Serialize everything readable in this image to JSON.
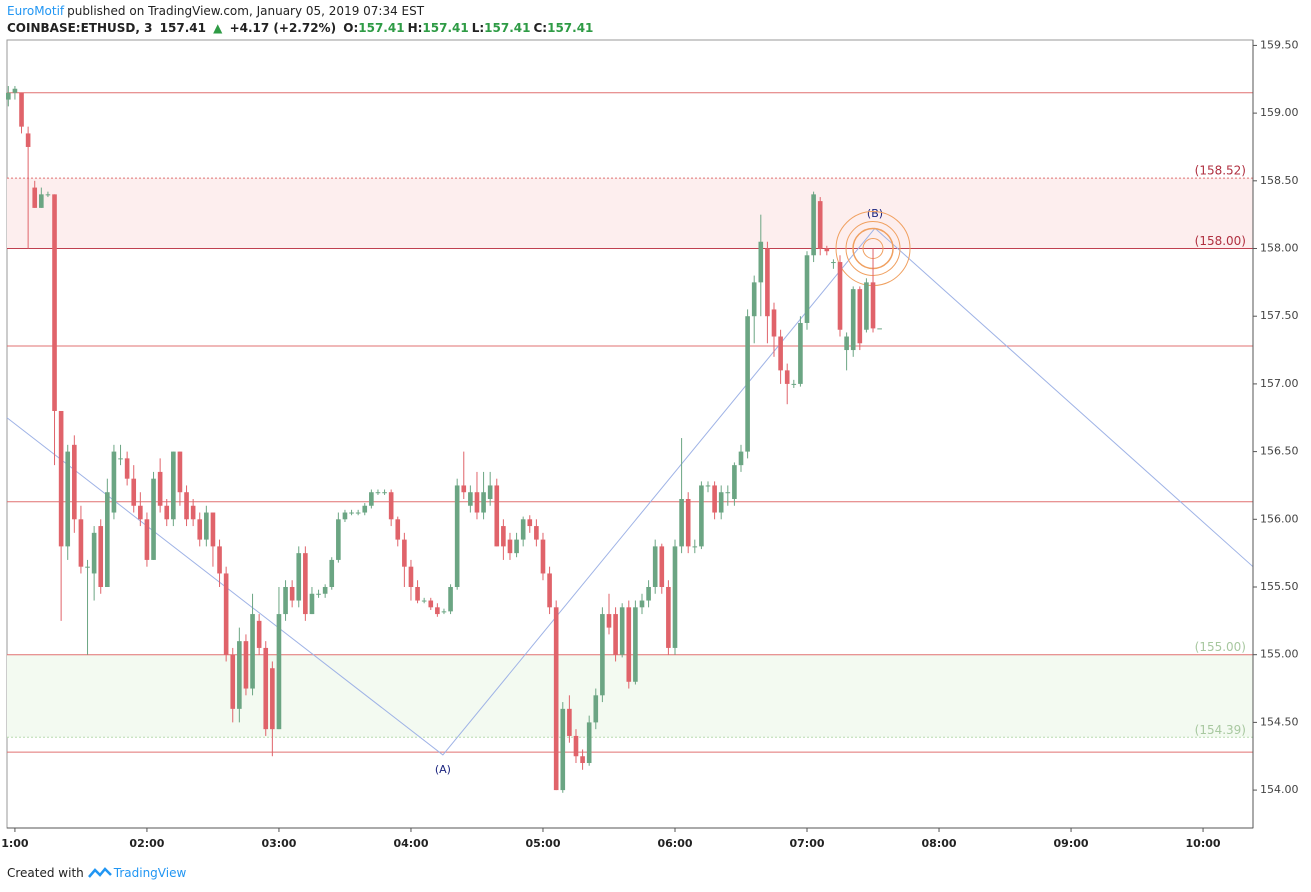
{
  "header": {
    "author": "EuroMotif",
    "published": "published on TradingView.com, January 05, 2019 07:34 EST",
    "symbol": "COINBASE:ETHUSD, 3",
    "last": "157.41",
    "arrow": "▲",
    "change": "+4.17 (+2.72%)",
    "ohlc": [
      {
        "key": "O:",
        "value": "157.41"
      },
      {
        "key": "H:",
        "value": "157.41"
      },
      {
        "key": "L:",
        "value": "157.41"
      },
      {
        "key": "C:",
        "value": "157.41"
      }
    ]
  },
  "footer": {
    "text": "Created with",
    "brand": "TradingView"
  },
  "chart_data": {
    "type": "candlestick",
    "up_color": "#6ba583",
    "down_color": "#e0636a",
    "xlim": [
      56.4,
      622.7
    ],
    "ylim": [
      153.72,
      159.54
    ],
    "xticks": [
      {
        "value": 60,
        "label": "1:00"
      },
      {
        "value": 120,
        "label": "02:00"
      },
      {
        "value": 180,
        "label": "03:00"
      },
      {
        "value": 240,
        "label": "04:00"
      },
      {
        "value": 300,
        "label": "05:00"
      },
      {
        "value": 360,
        "label": "06:00"
      },
      {
        "value": 420,
        "label": "07:00"
      },
      {
        "value": 480,
        "label": "08:00"
      },
      {
        "value": 540,
        "label": "09:00"
      },
      {
        "value": 600,
        "label": "10:00"
      }
    ],
    "yticks": [
      {
        "value": 154,
        "label": "154.00"
      },
      {
        "value": 154.5,
        "label": "154.50"
      },
      {
        "value": 155,
        "label": "155.00"
      },
      {
        "value": 155.5,
        "label": "155.50"
      },
      {
        "value": 156,
        "label": "156.00"
      },
      {
        "value": 156.5,
        "label": "156.50"
      },
      {
        "value": 157,
        "label": "157.00"
      },
      {
        "value": 157.5,
        "label": "157.50"
      },
      {
        "value": 158,
        "label": "158.00"
      },
      {
        "value": 158.5,
        "label": "158.50"
      },
      {
        "value": 159,
        "label": "159.00"
      },
      {
        "value": 159.5,
        "label": "159.50"
      }
    ],
    "x": [
      57,
      60,
      63,
      66,
      69,
      72,
      75,
      78,
      81,
      84,
      87,
      90,
      93,
      96,
      99,
      102,
      105,
      108,
      111,
      114,
      117,
      120,
      123,
      126,
      129,
      132,
      135,
      138,
      141,
      144,
      147,
      150,
      153,
      156,
      159,
      162,
      165,
      168,
      171,
      174,
      177,
      180,
      183,
      186,
      189,
      192,
      195,
      198,
      201,
      204,
      207,
      210,
      213,
      216,
      219,
      222,
      225,
      228,
      231,
      234,
      237,
      240,
      243,
      246,
      249,
      252,
      255,
      258,
      261,
      264,
      267,
      270,
      273,
      276,
      279,
      282,
      285,
      288,
      291,
      294,
      297,
      300,
      303,
      306,
      309,
      312,
      315,
      318,
      321,
      324,
      327,
      330,
      333,
      336,
      339,
      342,
      345,
      348,
      351,
      354,
      357,
      360,
      363,
      366,
      369,
      372,
      375,
      378,
      381,
      384,
      387,
      390,
      393,
      396,
      399,
      402,
      405,
      408,
      411,
      414,
      417,
      420,
      423,
      426,
      429,
      432,
      435,
      438,
      441,
      444,
      447,
      450,
      453
    ],
    "candles": [
      [
        159.1,
        159.2,
        159.05,
        159.15
      ],
      [
        159.15,
        159.2,
        159.1,
        159.18
      ],
      [
        159.15,
        159.15,
        158.85,
        158.9
      ],
      [
        158.85,
        158.9,
        158.0,
        158.75
      ],
      [
        158.45,
        158.5,
        158.3,
        158.3
      ],
      [
        158.3,
        158.45,
        158.3,
        158.4
      ],
      [
        158.4,
        158.42,
        158.38,
        158.4
      ],
      [
        158.4,
        158.4,
        156.4,
        156.8
      ],
      [
        156.8,
        156.8,
        155.25,
        155.8
      ],
      [
        155.8,
        156.55,
        155.7,
        156.5
      ],
      [
        156.55,
        156.62,
        155.9,
        156.0
      ],
      [
        156.0,
        156.1,
        155.6,
        155.65
      ],
      [
        155.65,
        155.7,
        155.0,
        155.65
      ],
      [
        155.6,
        155.95,
        155.4,
        155.9
      ],
      [
        155.95,
        156.0,
        155.45,
        155.5
      ],
      [
        155.5,
        156.3,
        155.5,
        156.2
      ],
      [
        156.05,
        156.55,
        156.0,
        156.5
      ],
      [
        156.45,
        156.55,
        156.4,
        156.45
      ],
      [
        156.45,
        156.5,
        156.25,
        156.3
      ],
      [
        156.3,
        156.4,
        156.05,
        156.1
      ],
      [
        156.1,
        156.2,
        155.95,
        156.0
      ],
      [
        156.0,
        156.05,
        155.65,
        155.7
      ],
      [
        155.7,
        156.35,
        155.7,
        156.3
      ],
      [
        156.35,
        156.45,
        156.05,
        156.1
      ],
      [
        156.1,
        156.15,
        155.95,
        156.0
      ],
      [
        156.0,
        156.5,
        155.95,
        156.5
      ],
      [
        156.5,
        156.5,
        156.1,
        156.2
      ],
      [
        156.2,
        156.25,
        155.95,
        156.0
      ],
      [
        156.1,
        156.15,
        155.95,
        156.0
      ],
      [
        156.0,
        156.05,
        155.8,
        155.85
      ],
      [
        155.85,
        156.1,
        155.8,
        156.05
      ],
      [
        156.05,
        156.05,
        155.65,
        155.8
      ],
      [
        155.8,
        155.85,
        155.5,
        155.6
      ],
      [
        155.6,
        155.65,
        154.95,
        155.0
      ],
      [
        155.0,
        155.05,
        154.5,
        154.6
      ],
      [
        154.6,
        155.2,
        154.5,
        155.1
      ],
      [
        155.1,
        155.15,
        154.7,
        154.75
      ],
      [
        154.75,
        155.45,
        154.7,
        155.3
      ],
      [
        155.25,
        155.3,
        155.0,
        155.05
      ],
      [
        155.05,
        155.1,
        154.4,
        154.45
      ],
      [
        154.9,
        154.95,
        154.25,
        154.45
      ],
      [
        154.45,
        155.5,
        154.45,
        155.3
      ],
      [
        155.3,
        155.55,
        155.25,
        155.5
      ],
      [
        155.5,
        155.55,
        155.35,
        155.4
      ],
      [
        155.4,
        155.8,
        155.35,
        155.75
      ],
      [
        155.75,
        155.8,
        155.25,
        155.3
      ],
      [
        155.3,
        155.5,
        155.3,
        155.45
      ],
      [
        155.45,
        155.48,
        155.42,
        155.45
      ],
      [
        155.45,
        155.52,
        155.42,
        155.5
      ],
      [
        155.5,
        155.72,
        155.48,
        155.7
      ],
      [
        155.7,
        156.05,
        155.68,
        156.0
      ],
      [
        156.0,
        156.07,
        155.98,
        156.05
      ],
      [
        156.05,
        156.07,
        156.03,
        156.05
      ],
      [
        156.05,
        156.07,
        156.03,
        156.05
      ],
      [
        156.05,
        156.12,
        156.03,
        156.1
      ],
      [
        156.1,
        156.22,
        156.08,
        156.2
      ],
      [
        156.2,
        156.22,
        156.18,
        156.2
      ],
      [
        156.2,
        156.22,
        156.18,
        156.2
      ],
      [
        156.2,
        156.22,
        155.95,
        156.0
      ],
      [
        156.0,
        156.02,
        155.8,
        155.85
      ],
      [
        155.85,
        155.9,
        155.5,
        155.65
      ],
      [
        155.65,
        155.7,
        155.4,
        155.5
      ],
      [
        155.5,
        155.55,
        155.38,
        155.4
      ],
      [
        155.4,
        155.42,
        155.38,
        155.4
      ],
      [
        155.4,
        155.42,
        155.33,
        155.35
      ],
      [
        155.35,
        155.38,
        155.28,
        155.3
      ],
      [
        155.32,
        155.34,
        155.3,
        155.32
      ],
      [
        155.32,
        155.52,
        155.3,
        155.5
      ],
      [
        155.5,
        156.3,
        155.48,
        156.25
      ],
      [
        156.25,
        156.5,
        156.15,
        156.2
      ],
      [
        156.1,
        156.25,
        156.05,
        156.2
      ],
      [
        156.2,
        156.35,
        156.0,
        156.05
      ],
      [
        156.05,
        156.35,
        156.0,
        156.2
      ],
      [
        156.15,
        156.35,
        156.1,
        156.25
      ],
      [
        156.25,
        156.3,
        155.8,
        155.8
      ],
      [
        155.95,
        156.0,
        155.7,
        155.8
      ],
      [
        155.85,
        155.9,
        155.7,
        155.75
      ],
      [
        155.75,
        155.9,
        155.72,
        155.85
      ],
      [
        155.85,
        156.02,
        155.8,
        156.0
      ],
      [
        156.0,
        156.03,
        155.9,
        155.95
      ],
      [
        155.95,
        156.0,
        155.8,
        155.85
      ],
      [
        155.85,
        155.9,
        155.55,
        155.6
      ],
      [
        155.6,
        155.65,
        155.3,
        155.35
      ],
      [
        155.35,
        155.4,
        154.0,
        154.0
      ],
      [
        154.0,
        154.65,
        153.98,
        154.6
      ],
      [
        154.6,
        154.7,
        154.35,
        154.4
      ],
      [
        154.4,
        154.45,
        154.2,
        154.25
      ],
      [
        154.25,
        154.3,
        154.15,
        154.2
      ],
      [
        154.2,
        154.55,
        154.18,
        154.5
      ],
      [
        154.5,
        154.75,
        154.45,
        154.7
      ],
      [
        154.7,
        155.35,
        154.65,
        155.3
      ],
      [
        155.3,
        155.45,
        155.15,
        155.2
      ],
      [
        155.3,
        155.35,
        154.95,
        155.0
      ],
      [
        155.0,
        155.38,
        154.98,
        155.35
      ],
      [
        155.35,
        155.4,
        154.75,
        154.8
      ],
      [
        154.8,
        155.4,
        154.78,
        155.35
      ],
      [
        155.35,
        155.45,
        155.3,
        155.4
      ],
      [
        155.4,
        155.55,
        155.35,
        155.5
      ],
      [
        155.5,
        155.85,
        155.45,
        155.8
      ],
      [
        155.8,
        155.82,
        155.45,
        155.5
      ],
      [
        155.5,
        155.55,
        155.0,
        155.05
      ],
      [
        155.05,
        155.85,
        155.0,
        155.8
      ],
      [
        155.8,
        156.6,
        155.75,
        156.15
      ],
      [
        156.15,
        156.2,
        155.75,
        155.8
      ],
      [
        155.8,
        155.85,
        155.75,
        155.8
      ],
      [
        155.8,
        156.28,
        155.78,
        156.25
      ],
      [
        156.25,
        156.28,
        156.2,
        156.25
      ],
      [
        156.25,
        156.28,
        156.0,
        156.05
      ],
      [
        156.05,
        156.25,
        156.0,
        156.2
      ],
      [
        156.2,
        156.25,
        156.1,
        156.2
      ],
      [
        156.15,
        156.42,
        156.1,
        156.4
      ],
      [
        156.4,
        156.55,
        156.35,
        156.5
      ],
      [
        156.5,
        157.55,
        156.45,
        157.5
      ],
      [
        157.5,
        157.8,
        157.3,
        157.75
      ],
      [
        157.75,
        158.25,
        157.5,
        158.05
      ],
      [
        158.0,
        158.05,
        157.3,
        157.5
      ],
      [
        157.55,
        157.6,
        157.2,
        157.35
      ],
      [
        157.35,
        157.4,
        157.0,
        157.1
      ],
      [
        157.1,
        157.15,
        156.85,
        157.0
      ],
      [
        157.0,
        157.03,
        156.97,
        157.0
      ],
      [
        157.0,
        157.5,
        156.98,
        157.45
      ],
      [
        157.45,
        157.98,
        157.4,
        157.95
      ],
      [
        157.95,
        158.42,
        157.9,
        158.4
      ],
      [
        158.35,
        158.38,
        157.95,
        158.0
      ],
      [
        158.0,
        158.02,
        157.95,
        157.98
      ],
      [
        157.9,
        157.92,
        157.85,
        157.9
      ],
      [
        157.9,
        157.95,
        157.35,
        157.4
      ],
      [
        157.25,
        157.38,
        157.1,
        157.35
      ],
      [
        157.25,
        157.72,
        157.2,
        157.7
      ],
      [
        157.7,
        157.72,
        157.25,
        157.3
      ],
      [
        157.4,
        157.78,
        157.38,
        157.75
      ],
      [
        157.75,
        158.0,
        157.38,
        157.41
      ],
      [
        157.41,
        157.41,
        157.41,
        157.41
      ]
    ],
    "zones": [
      {
        "from": 158.0,
        "to": 158.52,
        "color": "#fdeeee"
      },
      {
        "from": 154.39,
        "to": 155.0,
        "color": "#f3faf1"
      }
    ],
    "levels": [
      {
        "value": 159.15,
        "color": "#e07070"
      },
      {
        "value": 158.52,
        "color": "#e07070",
        "style": "dotted",
        "label": "(158.52)",
        "label_color": "#b03040"
      },
      {
        "value": 158.0,
        "color": "#c04050",
        "label": "(158.00)",
        "label_color": "#b03040"
      },
      {
        "value": 157.28,
        "color": "#e07070"
      },
      {
        "value": 156.13,
        "color": "#e07070"
      },
      {
        "value": 155.0,
        "color": "#e07070",
        "label": "(155.00)",
        "label_color": "#a8c8a0"
      },
      {
        "value": 154.39,
        "color": "#b8dcb0",
        "style": "dotted",
        "label": "(154.39)",
        "label_color": "#a8c8a0"
      },
      {
        "value": 154.28,
        "color": "#e07070"
      }
    ],
    "wave": {
      "color": "#9fb3e6",
      "points": [
        [
          56.4,
          156.75
        ],
        [
          254.5,
          154.26
        ],
        [
          450.9,
          158.15
        ],
        [
          622.7,
          155.65
        ]
      ],
      "labels": [
        {
          "text": "(A)",
          "at": 1
        },
        {
          "text": "(B)",
          "at": 2
        }
      ]
    },
    "target": {
      "color": "#f0a060",
      "center": [
        450,
        158.0
      ]
    }
  }
}
